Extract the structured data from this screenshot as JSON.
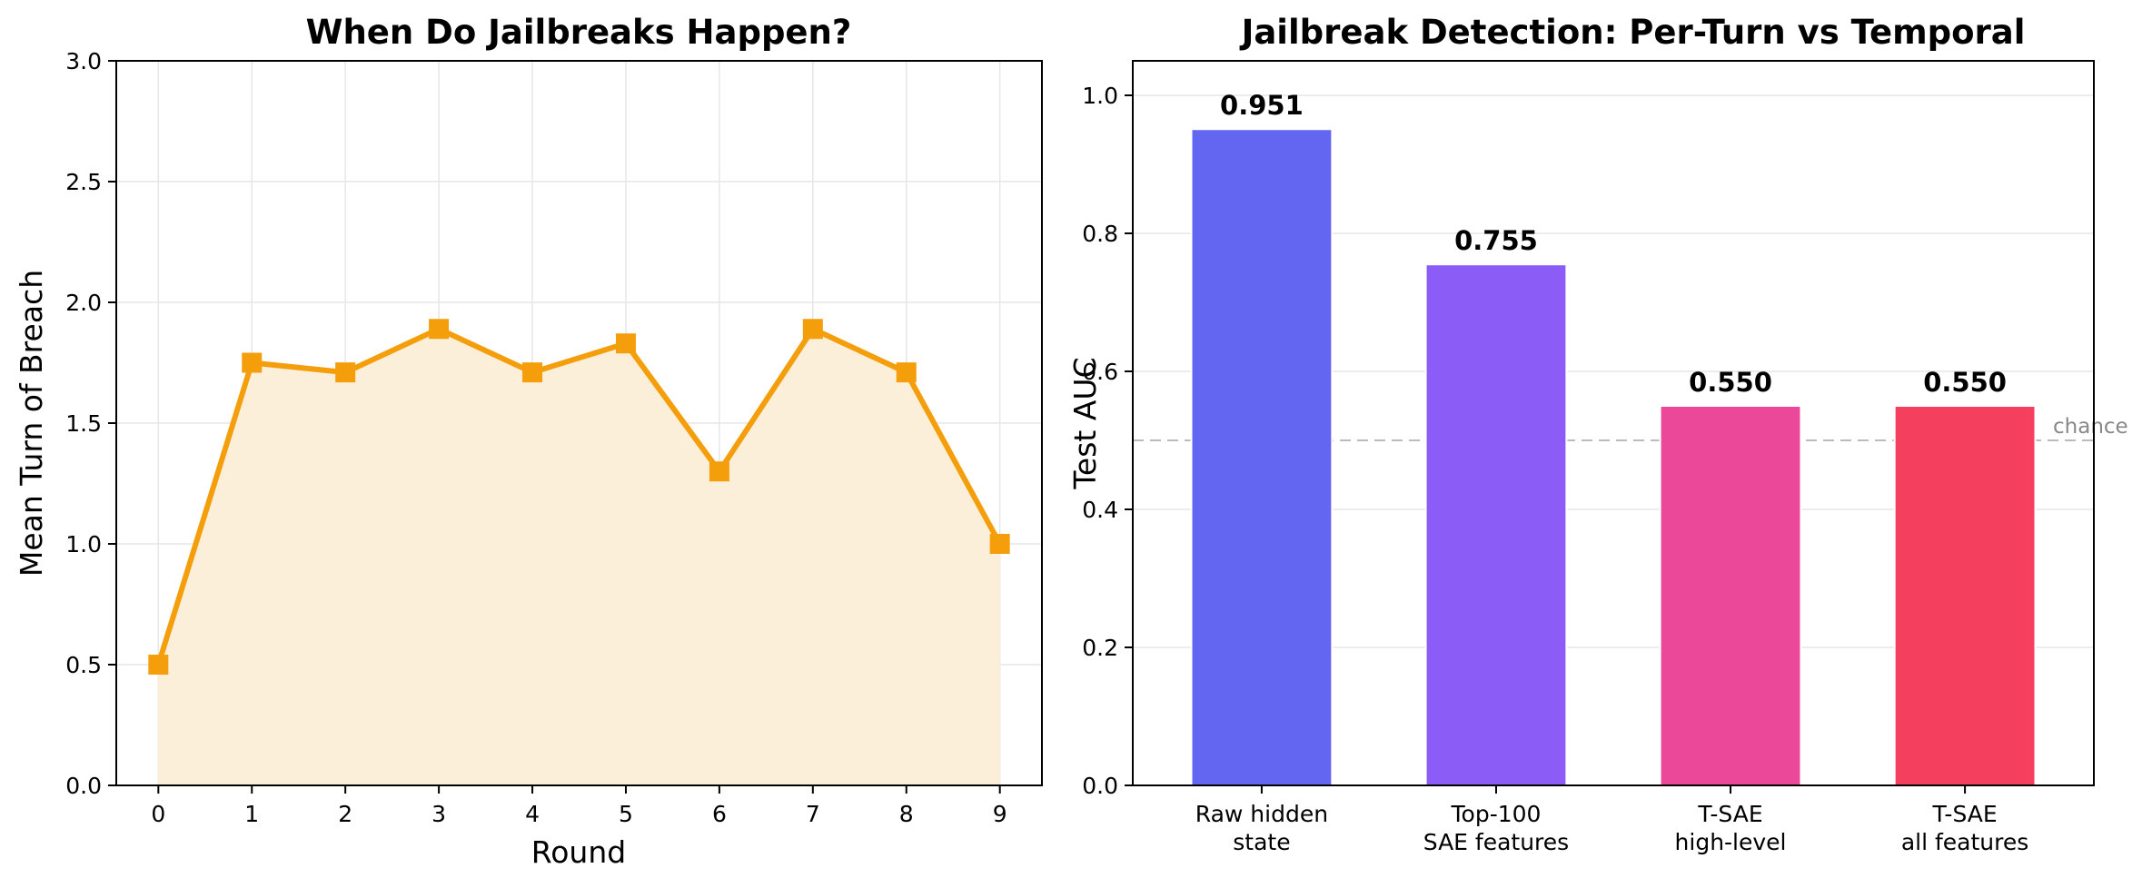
{
  "chart_data": [
    {
      "type": "line",
      "title": "When Do Jailbreaks Happen?",
      "xlabel": "Round",
      "ylabel": "Mean Turn of Breach",
      "x": [
        0,
        1,
        2,
        3,
        4,
        5,
        6,
        7,
        8,
        9
      ],
      "y": [
        0.5,
        1.75,
        1.71,
        1.89,
        1.71,
        1.83,
        1.3,
        1.89,
        1.71,
        1.0
      ],
      "xlim": [
        -0.45,
        9.45
      ],
      "ylim": [
        0,
        3.0
      ],
      "xticks": [
        "0",
        "1",
        "2",
        "3",
        "4",
        "5",
        "6",
        "7",
        "8",
        "9"
      ],
      "yticks": [
        "0.0",
        "0.5",
        "1.0",
        "1.5",
        "2.0",
        "2.5",
        "3.0"
      ],
      "ytick_values": [
        0,
        0.5,
        1.0,
        1.5,
        2.0,
        2.5,
        3.0
      ],
      "grid": true,
      "area_fill": true,
      "marker": "square",
      "color": "#f59e0b",
      "fill_color": "#fcefd9"
    },
    {
      "type": "bar",
      "title": "Jailbreak Detection: Per-Turn vs Temporal",
      "xlabel": "",
      "ylabel": "Test AUC",
      "categories": [
        [
          "Raw hidden",
          "state"
        ],
        [
          "Top-100",
          "SAE features"
        ],
        [
          "T-SAE",
          "high-level"
        ],
        [
          "T-SAE",
          "all features"
        ]
      ],
      "values": [
        0.951,
        0.755,
        0.55,
        0.55
      ],
      "value_labels": [
        "0.951",
        "0.755",
        "0.550",
        "0.550"
      ],
      "colors": [
        "#6366f1",
        "#8b5cf6",
        "#ec4899",
        "#f43f5e"
      ],
      "ylim": [
        0,
        1.05
      ],
      "yticks": [
        "0.0",
        "0.2",
        "0.4",
        "0.6",
        "0.8",
        "1.0"
      ],
      "ytick_values": [
        0,
        0.2,
        0.4,
        0.6,
        0.8,
        1.0
      ],
      "grid": true,
      "reference_line": {
        "y": 0.5,
        "label": "chance",
        "color": "#bbbbbb"
      }
    }
  ]
}
